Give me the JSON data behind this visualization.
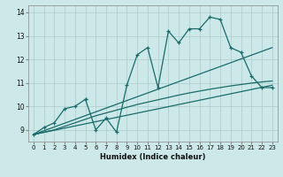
{
  "title": "",
  "xlabel": "Humidex (Indice chaleur)",
  "bg_color": "#cce8e8",
  "grid_color": "#aacccc",
  "line_color": "#1a6b6b",
  "xlim": [
    -0.5,
    23.5
  ],
  "ylim": [
    8.5,
    14.3
  ],
  "xticks": [
    0,
    1,
    2,
    3,
    4,
    5,
    6,
    7,
    8,
    9,
    10,
    11,
    12,
    13,
    14,
    15,
    16,
    17,
    18,
    19,
    20,
    21,
    22,
    23
  ],
  "yticks": [
    9,
    10,
    11,
    12,
    13,
    14
  ],
  "series1_x": [
    0,
    1,
    2,
    3,
    4,
    5,
    5,
    6,
    7,
    8,
    9,
    10,
    11,
    12,
    13,
    14,
    15,
    16,
    17,
    18,
    19,
    20,
    21,
    22,
    23
  ],
  "series1_y": [
    8.8,
    9.1,
    9.3,
    9.9,
    10.0,
    10.3,
    10.3,
    9.0,
    9.5,
    8.9,
    10.9,
    12.2,
    12.5,
    10.8,
    13.2,
    12.7,
    13.3,
    13.3,
    13.8,
    13.7,
    12.5,
    12.3,
    11.3,
    10.8,
    10.8
  ],
  "trend1_x": [
    0,
    23
  ],
  "trend1_y": [
    8.8,
    10.9
  ],
  "trend2_x": [
    0,
    23
  ],
  "trend2_y": [
    8.8,
    12.5
  ],
  "trend3_x": [
    0,
    1,
    2,
    3,
    4,
    5,
    6,
    7,
    8,
    9,
    10,
    11,
    12,
    13,
    14,
    15,
    16,
    17,
    18,
    19,
    20,
    21,
    22,
    23
  ],
  "trend3_y": [
    8.8,
    8.9,
    9.0,
    9.15,
    9.3,
    9.45,
    9.6,
    9.72,
    9.84,
    9.96,
    10.08,
    10.18,
    10.28,
    10.38,
    10.48,
    10.57,
    10.65,
    10.73,
    10.8,
    10.87,
    10.93,
    10.99,
    11.04,
    11.08
  ]
}
